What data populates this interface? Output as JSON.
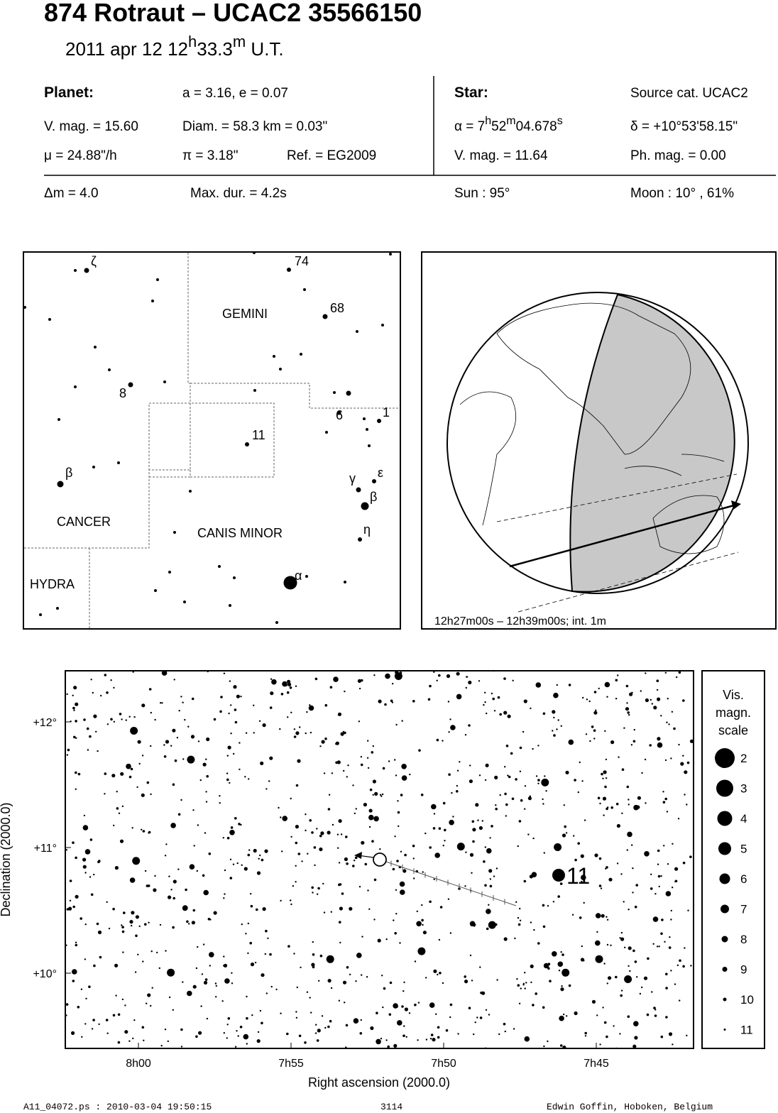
{
  "header": {
    "title": "874 Rotraut  –  UCAC2 35566150",
    "date": [
      "2011 apr 12  12",
      "h",
      "33.3",
      "m",
      " U.T."
    ]
  },
  "info": {
    "planet": "Planet:",
    "orbit": "a = 3.16, e = 0.07",
    "star": "Star:",
    "source": "Source cat.  UCAC2",
    "planet_mag": "V. mag. = 15.60",
    "diam": "Diam. = 58.3 km = 0.03\"",
    "alpha": [
      "α =  7",
      "h",
      "52",
      "m",
      "04.678",
      "s"
    ],
    "delta": "δ = +10°53'58.15\"",
    "mu": "μ =  24.88\"/h",
    "parallax": "π =  3.18\"",
    "ref": "Ref. = EG2009",
    "star_mag": "V. mag. = 11.64",
    "ph_mag": "Ph. mag. =  0.00",
    "dm": "Δm = 4.0",
    "max_dur": "Max. dur. = 4.2s",
    "sun": "Sun :  95°",
    "moon": "Moon :  10° , 61%"
  },
  "constellation_map": {
    "labels": [
      "ζ",
      "74",
      "GEMINI",
      "68",
      "8",
      "6",
      "1",
      "11",
      "β",
      "γ",
      "ε",
      "β",
      "CANCER",
      "CANIS MINOR",
      "η",
      "HYDRA",
      "α"
    ]
  },
  "globe": {
    "caption": "12h27m00s – 12h39m00s; int.  1m"
  },
  "star_chart": {
    "yticks": [
      "+12°",
      "+11°",
      "+10°"
    ],
    "xticks": [
      "8h00",
      "7h55",
      "7h50",
      "7h45"
    ],
    "xlabel": "Right ascension (2000.0)",
    "ylabel": "Declination (2000.0)",
    "target_label": "11"
  },
  "legend": {
    "title": [
      "Vis.",
      "magn.",
      "scale"
    ],
    "entries": [
      "2",
      "3",
      "4",
      "5",
      "6",
      "7",
      "8",
      "9",
      "10",
      "11"
    ]
  },
  "footer": [
    "A11_04072.ps : 2010-03-04 19:50:15",
    "3114",
    "Edwin Goffin, Hoboken, Belgium"
  ]
}
